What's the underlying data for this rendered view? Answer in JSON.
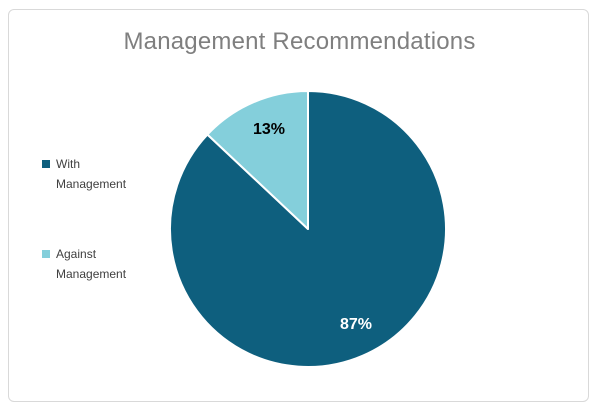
{
  "chart_data": {
    "type": "pie",
    "title": "Management Recommendations",
    "categories": [
      "With Management",
      "Against Management"
    ],
    "values": [
      87,
      13
    ],
    "data_labels": [
      "87%",
      "13%"
    ],
    "colors": [
      "#0E5F7E",
      "#84CFDB"
    ],
    "data_label_colors": [
      "#FFFFFF",
      "#000000"
    ],
    "title_color": "#7F7F7F",
    "legend_text_color": "#404040",
    "legend_position": "left",
    "start_angle_deg": 0,
    "direction": "clockwise",
    "slice_border_color": "#FFFFFF",
    "chart_border_color": "#D9D9D9",
    "background": "#FFFFFF"
  }
}
